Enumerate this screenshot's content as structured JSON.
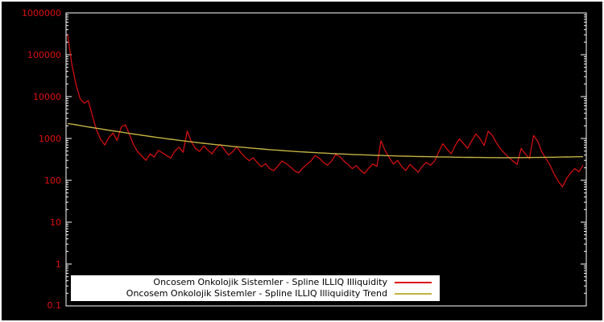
{
  "style": {
    "background": "#000000",
    "figure_border": "#ffffff",
    "axis_color": "#ffffff",
    "tick_label_color": "#e01010",
    "legend_background": "#ffffff",
    "legend_text_color": "#000000"
  },
  "chart_data": {
    "type": "line",
    "title": "",
    "xlabel": "",
    "ylabel": "",
    "x_axis": {
      "tick_labels_visible": false
    },
    "y_axis": {
      "scale": "log",
      "range": [
        0.1,
        1000000
      ],
      "tick_labels": [
        "1000000",
        "100000",
        "10000",
        "1000",
        "100",
        "10",
        "1",
        "0.1"
      ]
    },
    "legend": {
      "position": "bottom-center",
      "background": "#ffffff"
    },
    "series": [
      {
        "name": "Oncosem Onkolojik Sistemler - Spline ILLIQ Illiquidity",
        "color": "#e01010",
        "values": [
          300000,
          60000,
          20000,
          9000,
          7000,
          8000,
          3500,
          1600,
          950,
          700,
          1050,
          1350,
          900,
          1900,
          2100,
          1250,
          700,
          480,
          380,
          300,
          430,
          360,
          520,
          450,
          390,
          340,
          500,
          620,
          470,
          1500,
          830,
          580,
          490,
          660,
          530,
          430,
          590,
          720,
          540,
          400,
          480,
          630,
          460,
          360,
          295,
          345,
          265,
          210,
          250,
          190,
          170,
          220,
          290,
          250,
          210,
          170,
          150,
          195,
          240,
          290,
          390,
          340,
          270,
          230,
          290,
          410,
          370,
          290,
          240,
          190,
          225,
          175,
          145,
          195,
          245,
          215,
          880,
          510,
          345,
          245,
          300,
          215,
          170,
          240,
          195,
          155,
          215,
          270,
          230,
          290,
          480,
          750,
          560,
          430,
          680,
          980,
          760,
          580,
          880,
          1280,
          990,
          680,
          1480,
          1180,
          780,
          560,
          440,
          350,
          290,
          240,
          580,
          430,
          330,
          1180,
          860,
          480,
          330,
          230,
          140,
          95,
          70,
          110,
          150,
          190,
          160,
          230
        ]
      },
      {
        "name": "Oncosem Onkolojik Sistemler - Spline ILLIQ Illiquidity Trend",
        "color": "#c3b143",
        "values": [
          2280,
          2201,
          2122,
          2042,
          1963,
          1884,
          1821,
          1758,
          1694,
          1631,
          1568,
          1518,
          1468,
          1417,
          1367,
          1317,
          1277,
          1237,
          1196,
          1156,
          1116,
          1084,
          1052,
          1020,
          988,
          956,
          931,
          905,
          880,
          854,
          829,
          809,
          789,
          768,
          748,
          728,
          712,
          695,
          679,
          662,
          646,
          633,
          620,
          608,
          595,
          582,
          572,
          562,
          551,
          541,
          531,
          523,
          515,
          506,
          498,
          490,
          484,
          477,
          471,
          464,
          458,
          453,
          448,
          442,
          437,
          432,
          428,
          424,
          419,
          415,
          411,
          408,
          405,
          401,
          398,
          395,
          392,
          389,
          387,
          384,
          381,
          379,
          377,
          375,
          373,
          371,
          369,
          368,
          366,
          365,
          363,
          362,
          360,
          359,
          357,
          356,
          355,
          354,
          353,
          352,
          351,
          350,
          349,
          349,
          348,
          347,
          347,
          348,
          348,
          349,
          349,
          350,
          350,
          351,
          352,
          354,
          355,
          356,
          356,
          358,
          359,
          361,
          362,
          364,
          366,
          368
        ]
      }
    ]
  }
}
